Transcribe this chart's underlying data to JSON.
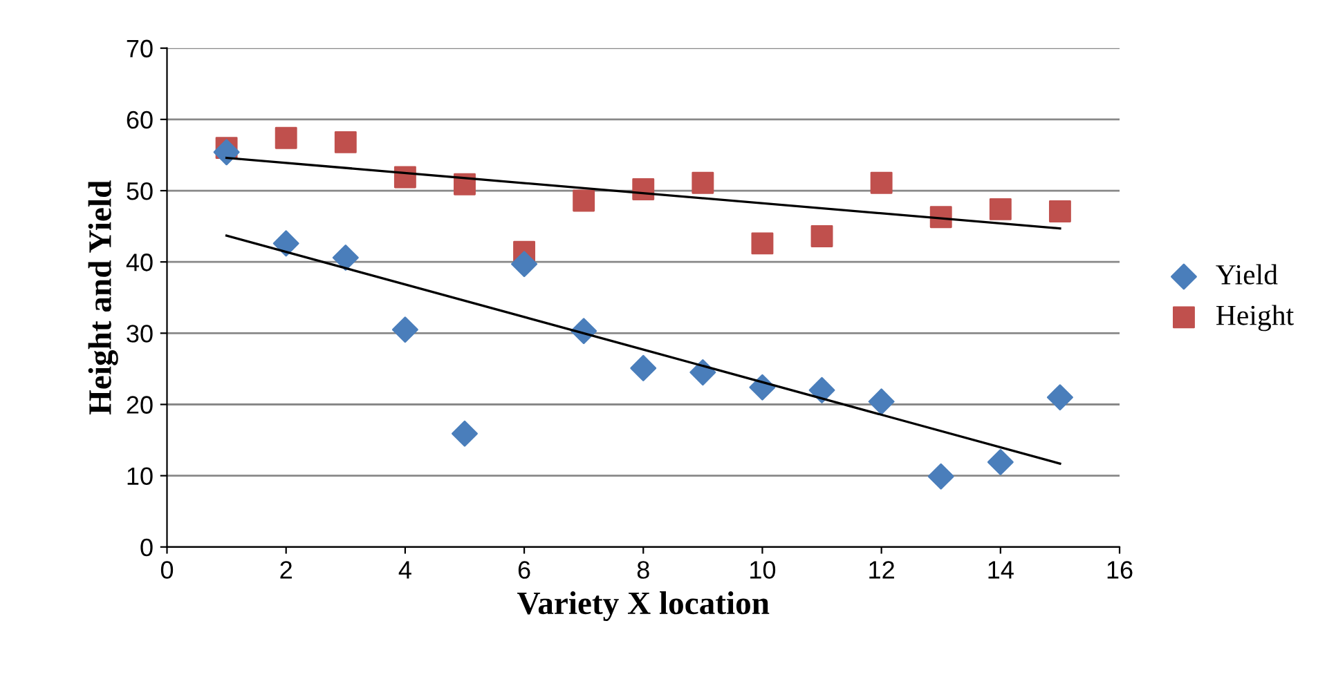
{
  "chart_data": {
    "type": "scatter",
    "xlabel": "Variety X location",
    "ylabel": "Height and Yield",
    "xlim": [
      0,
      16
    ],
    "xticks": [
      0,
      2,
      4,
      6,
      8,
      10,
      12,
      14,
      16
    ],
    "ylim": [
      0,
      70
    ],
    "yticks": [
      0,
      10,
      20,
      30,
      40,
      50,
      60,
      70
    ],
    "grid": "y",
    "legend": "right",
    "series": [
      {
        "name": "Yield",
        "color": "#4a7ebb",
        "marker": "diamond",
        "x": [
          1,
          2,
          3,
          4,
          5,
          6,
          7,
          8,
          9,
          10,
          11,
          12,
          13,
          14,
          15
        ],
        "values": [
          55.4,
          42.6,
          40.6,
          30.5,
          15.9,
          39.7,
          30.3,
          25.1,
          24.5,
          22.4,
          22,
          20.4,
          9.9,
          11.9,
          21
        ]
      },
      {
        "name": "Height",
        "color": "#c0504d",
        "marker": "square",
        "x": [
          1,
          2,
          3,
          4,
          5,
          6,
          7,
          8,
          9,
          10,
          11,
          12,
          13,
          14,
          15
        ],
        "values": [
          56,
          57.4,
          56.8,
          51.9,
          50.9,
          41.4,
          48.6,
          50.2,
          51.1,
          42.6,
          43.6,
          51.1,
          46.3,
          47.4,
          47.1
        ]
      },
      {
        "type": "line",
        "color": "#000000",
        "marker": "none",
        "x": [
          1,
          15
        ],
        "values": [
          43.7,
          11.7
        ]
      },
      {
        "type": "line",
        "color": "#000000",
        "marker": "none",
        "x": [
          1,
          15
        ],
        "values": [
          54.6,
          44.7
        ]
      }
    ]
  }
}
